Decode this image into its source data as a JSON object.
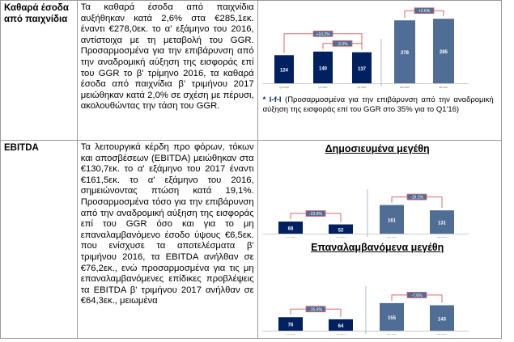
{
  "rows": [
    {
      "label": "Καθαρά έσοδα από παιχνίδια",
      "text": "Τα καθαρά έσοδα από παιχνίδια αυξήθηκαν κατά 2,6% στα €285,1εκ. έναντι €278,0εκ. το α' εξάμηνο του 2016, αντίστοιχα με τη μεταβολή του GGR. Προσαρμοσμένα για την επιβάρυνση από την αναδρομική αύξηση της εισφοράς επί του GGR το β' τρίμηνο 2016, τα καθαρά έσοδα από παιχνίδια β' τριμήνου 2017 μειώθηκαν κατά 2,0% σε σχέση με πέρυσι, ακολουθώντας την τάση του GGR.",
      "note_mark": "* l-f-l",
      "note": "(Προσαρμοσμένα για την επιβάρυνση από την αναδρομική αύξηση της εισφοράς επί του GGR στο 35% για το Q1'16)"
    },
    {
      "label": "EBITDA",
      "text": "Τα λειτουργικά κέρδη προ φόρων, τόκων και αποσβέσεων (EBITDA) μειώθηκαν στα €130,7εκ. το α' εξάμηνο του 2017 έναντι €161,5εκ. το α' εξάμηνο του 2016, σημειώνοντας πτώση κατά 19,1%. Προσαρμοσμένα τόσο για την επιβάρυνση από την αναδρομική αύξηση της εισφοράς επί του GGR όσο και για το μη επαναλαμβανόμενο έσοδο ύψους €6,5εκ. που ενίσχυσε τα αποτελέσματα β' τριμήνου 2016, τα EBITDA ανήλθαν σε €76,2εκ., ενώ προσαρμοσμένα για τις μη επαναλαμβανόμενες επίδικες προβλέψεις τα EBITDA β' τριμήνου 2017 ανήλθαν σε €64,3εκ., μειωμένα",
      "chart_titles": [
        "Δημοσιευμένα μεγέθη",
        "Επαναλαμβανόμενα μεγέθη"
      ]
    }
  ],
  "colors": {
    "dark_bar": "#002060",
    "light_bar": "#4F6D95",
    "arrow": "#E06666",
    "badge": "#4F6D95"
  },
  "chart_data": [
    {
      "type": "bar",
      "title": "Καθαρά έσοδα από παιχνίδια",
      "groups": [
        {
          "categories": [
            "Q2 2016",
            "Q1 2017",
            "Q2 2017"
          ],
          "values": [
            124,
            140,
            137
          ],
          "color": "dark",
          "changes": [
            {
              "from": 0,
              "to": 2,
              "label": "+10.2%"
            },
            {
              "from": 1,
              "to": 2,
              "label": "-2.0%"
            }
          ]
        },
        {
          "categories": [
            "6M 2016",
            "6M 2017"
          ],
          "values": [
            278,
            285
          ],
          "color": "light",
          "changes": [
            {
              "from": 0,
              "to": 1,
              "label": "+2.6%"
            }
          ]
        }
      ]
    },
    {
      "type": "bar",
      "title": "Δημοσιευμένα μεγέθη",
      "groups": [
        {
          "categories": [
            "Q2 2016",
            "Q2 2017"
          ],
          "values": [
            68,
            52
          ],
          "color": "dark",
          "changes": [
            {
              "from": 0,
              "to": 1,
              "label": "-23.8%"
            }
          ]
        },
        {
          "categories": [
            "6M 2016",
            "6M 2017"
          ],
          "values": [
            161,
            131
          ],
          "color": "light",
          "changes": [
            {
              "from": 0,
              "to": 1,
              "label": "-19.1%"
            }
          ]
        }
      ]
    },
    {
      "type": "bar",
      "title": "Επαναλαμβανόμενα μεγέθη",
      "groups": [
        {
          "categories": [
            "Q2 2016",
            "Q2 2017"
          ],
          "values": [
            76,
            64
          ],
          "color": "dark",
          "changes": [
            {
              "from": 0,
              "to": 1,
              "label": "-15.6%"
            }
          ]
        },
        {
          "categories": [
            "6M 2016",
            "6M 2017"
          ],
          "values": [
            155,
            143
          ],
          "color": "light",
          "changes": [
            {
              "from": 0,
              "to": 1,
              "label": "-7.6%"
            }
          ]
        }
      ]
    }
  ]
}
